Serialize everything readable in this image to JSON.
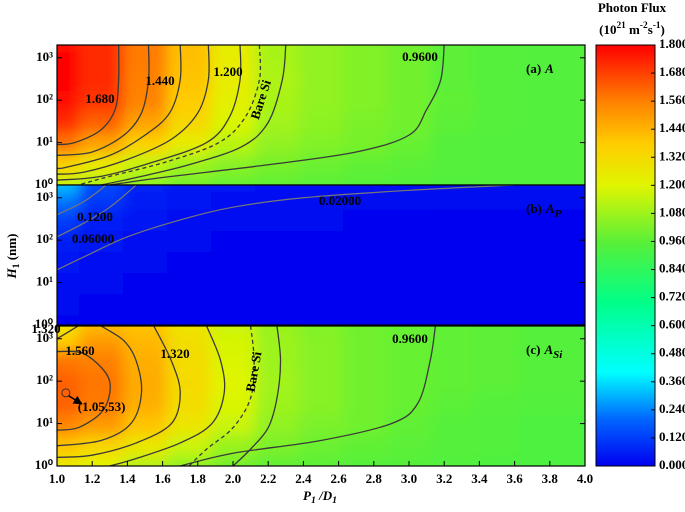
{
  "chart_data": {
    "type": "contour",
    "xlim": [
      1,
      4
    ],
    "xticks": [
      {
        "value": 1,
        "label": "1.0"
      },
      {
        "value": 1.2,
        "label": "1.2"
      },
      {
        "value": 1.4,
        "label": "1.4"
      },
      {
        "value": 1.6,
        "label": "1.6"
      },
      {
        "value": 1.8,
        "label": "1.8"
      },
      {
        "value": 2,
        "label": "2.0"
      },
      {
        "value": 2.2,
        "label": "2.2"
      },
      {
        "value": 2.4,
        "label": "2.4"
      },
      {
        "value": 2.6,
        "label": "2.6"
      },
      {
        "value": 2.8,
        "label": "2.8"
      },
      {
        "value": 3,
        "label": "3.0"
      },
      {
        "value": 3.2,
        "label": "3.2"
      },
      {
        "value": 3.4,
        "label": "3.4"
      },
      {
        "value": 3.6,
        "label": "3.6"
      },
      {
        "value": 3.8,
        "label": "3.8"
      },
      {
        "value": 4,
        "label": "4.0"
      }
    ],
    "xlabel": [
      {
        "text": "P",
        "sub": "1"
      },
      {
        "text": " /D",
        "sub": "1"
      }
    ],
    "ylabel": [
      {
        "text": "H",
        "sub": "1"
      },
      {
        "text": " (nm)"
      }
    ],
    "ylim": [
      1,
      2000
    ],
    "yscale": "log",
    "yticks": [
      {
        "value": 1,
        "label": "10⁰"
      },
      {
        "value": 10,
        "label": "10¹"
      },
      {
        "value": 100,
        "label": "10²"
      },
      {
        "value": 1000,
        "label": "10³"
      }
    ],
    "colorbar": {
      "title": "Photon Flux",
      "unit": [
        {
          "text": "(10",
          "sup": "21"
        },
        {
          "text": " m",
          "sup": "-2"
        },
        {
          "text": "s",
          "sup": "-1"
        },
        {
          "text": ")"
        }
      ],
      "lim": [
        0,
        1.8
      ],
      "ticks": [
        {
          "value": 0,
          "label": "0.000"
        },
        {
          "value": 0.12,
          "label": "0.1200"
        },
        {
          "value": 0.24,
          "label": "0.2400"
        },
        {
          "value": 0.36,
          "label": "0.3600"
        },
        {
          "value": 0.48,
          "label": "0.4800"
        },
        {
          "value": 0.6,
          "label": "0.6000"
        },
        {
          "value": 0.72,
          "label": "0.7200"
        },
        {
          "value": 0.84,
          "label": "0.8400"
        },
        {
          "value": 0.96,
          "label": "0.9600"
        },
        {
          "value": 1.08,
          "label": "1.080"
        },
        {
          "value": 1.2,
          "label": "1.200"
        },
        {
          "value": 1.32,
          "label": "1.320"
        },
        {
          "value": 1.44,
          "label": "1.440"
        },
        {
          "value": 1.56,
          "label": "1.560"
        },
        {
          "value": 1.68,
          "label": "1.680"
        },
        {
          "value": 1.8,
          "label": "1.800"
        }
      ],
      "colormap": [
        [
          0,
          "#0000f0"
        ],
        [
          0.2,
          "#0066ff"
        ],
        [
          0.4,
          "#00ffff"
        ],
        [
          0.7,
          "#00ff88"
        ],
        [
          0.95,
          "#55f03a"
        ],
        [
          1.2,
          "#e0f500"
        ],
        [
          1.38,
          "#ffcc00"
        ],
        [
          1.56,
          "#ff8000"
        ],
        [
          1.8,
          "#ff0000"
        ]
      ]
    },
    "panels": [
      {
        "tag": "(a)",
        "symbol": "A",
        "x": [
          1,
          1.25,
          1.5,
          1.75,
          2,
          2.25,
          2.5,
          2.75,
          3,
          3.25,
          3.5,
          3.75,
          4
        ],
        "y": [
          1,
          3,
          10,
          30,
          100,
          300,
          1000,
          2000
        ],
        "z": [
          [
            1.15,
            1.1,
            1.04,
            1.0,
            0.98,
            0.97,
            0.96,
            0.95,
            0.95,
            0.94,
            0.94,
            0.94,
            0.94
          ],
          [
            1.35,
            1.25,
            1.15,
            1.08,
            1.04,
            1.01,
            0.99,
            0.97,
            0.96,
            0.95,
            0.94,
            0.94,
            0.94
          ],
          [
            1.58,
            1.48,
            1.36,
            1.24,
            1.13,
            1.06,
            1.03,
            1.01,
            0.98,
            0.95,
            0.94,
            0.94,
            0.94
          ],
          [
            1.72,
            1.62,
            1.48,
            1.33,
            1.19,
            1.09,
            1.05,
            1.02,
            1.0,
            0.96,
            0.95,
            0.94,
            0.94
          ],
          [
            1.78,
            1.7,
            1.55,
            1.38,
            1.22,
            1.1,
            1.06,
            1.03,
            1.0,
            0.97,
            0.95,
            0.94,
            0.94
          ],
          [
            1.8,
            1.72,
            1.56,
            1.4,
            1.24,
            1.11,
            1.06,
            1.03,
            1.0,
            0.96,
            0.95,
            0.94,
            0.94
          ],
          [
            1.79,
            1.72,
            1.57,
            1.41,
            1.24,
            1.1,
            1.06,
            1.03,
            1.0,
            0.96,
            0.95,
            0.94,
            0.94
          ],
          [
            1.78,
            1.72,
            1.57,
            1.41,
            1.23,
            1.1,
            1.06,
            1.03,
            1.0,
            0.96,
            0.95,
            0.94,
            0.94
          ]
        ],
        "contours": [
          {
            "level": 1.68,
            "level_label": "1.680",
            "x": [
              1.35,
              1.35,
              1.33,
              1.25,
              1.1,
              1.0
            ],
            "y": [
              2000,
              300,
              60,
              20,
              10,
              9
            ]
          },
          {
            "level": 1.56,
            "x": [
              1.52,
              1.52,
              1.48,
              1.38,
              1.2,
              1.0
            ],
            "y": [
              2000,
              300,
              50,
              15,
              6,
              5
            ]
          },
          {
            "level": 1.44,
            "level_label": "1.440",
            "x": [
              1.7,
              1.7,
              1.64,
              1.5,
              1.3,
              1.05,
              1.0
            ],
            "y": [
              2000,
              300,
              50,
              15,
              5,
              2.6,
              2.5
            ]
          },
          {
            "level": 1.32,
            "x": [
              1.86,
              1.86,
              1.8,
              1.65,
              1.4,
              1.15,
              1.0
            ],
            "y": [
              2000,
              300,
              50,
              12,
              4,
              2,
              1.8
            ]
          },
          {
            "level": 1.2,
            "level_label": "1.200",
            "x": [
              2.04,
              2.04,
              1.98,
              1.85,
              1.55,
              1.25,
              1.0
            ],
            "y": [
              2000,
              300,
              40,
              10,
              3.5,
              1.6,
              1.3
            ]
          },
          {
            "style": "dashed",
            "x": [
              2.15,
              2.15,
              2.07,
              1.92,
              1.62,
              1.3,
              1.12
            ],
            "y": [
              2000,
              300,
              40,
              10,
              3.5,
              1.6,
              1
            ]
          },
          {
            "level": 1.08,
            "x": [
              2.3,
              2.28,
              2.2,
              2.05,
              1.75,
              1.45,
              1.25
            ],
            "y": [
              2000,
              300,
              30,
              8,
              3,
              1.5,
              1
            ]
          },
          {
            "level": 0.96,
            "level_label": "0.9600",
            "x": [
              3.2,
              3.18,
              3.1,
              3.0,
              2.7,
              2.2,
              1.6,
              1.3
            ],
            "y": [
              2000,
              300,
              60,
              15,
              6,
              3,
              1.5,
              1
            ]
          }
        ],
        "annotations": [
          {
            "text": "Bare Si"
          }
        ]
      },
      {
        "tag": "(b)",
        "symbol": "A",
        "sub": "P",
        "x": [
          1,
          1.25,
          1.5,
          1.75,
          2,
          2.25,
          2.5,
          2.75,
          3,
          3.25,
          3.5,
          3.75,
          4
        ],
        "y": [
          1,
          3,
          10,
          30,
          100,
          300,
          1000,
          2000
        ],
        "z": [
          [
            0.012,
            0.01,
            0.008,
            0.007,
            0.006,
            0.006,
            0.006,
            0.005,
            0.005,
            0.005,
            0.005,
            0.005,
            0.005
          ],
          [
            0.014,
            0.011,
            0.009,
            0.008,
            0.007,
            0.006,
            0.006,
            0.006,
            0.005,
            0.005,
            0.005,
            0.005,
            0.005
          ],
          [
            0.02,
            0.014,
            0.01,
            0.008,
            0.007,
            0.007,
            0.006,
            0.006,
            0.006,
            0.006,
            0.005,
            0.005,
            0.005
          ],
          [
            0.035,
            0.02,
            0.013,
            0.01,
            0.009,
            0.008,
            0.008,
            0.007,
            0.007,
            0.007,
            0.007,
            0.007,
            0.007
          ],
          [
            0.06,
            0.035,
            0.02,
            0.015,
            0.012,
            0.011,
            0.01,
            0.01,
            0.009,
            0.009,
            0.009,
            0.009,
            0.009
          ],
          [
            0.12,
            0.06,
            0.035,
            0.022,
            0.018,
            0.015,
            0.013,
            0.012,
            0.012,
            0.011,
            0.011,
            0.011,
            0.011
          ],
          [
            0.22,
            0.11,
            0.055,
            0.035,
            0.028,
            0.024,
            0.021,
            0.018,
            0.017,
            0.016,
            0.015,
            0.015,
            0.015
          ],
          [
            0.32,
            0.15,
            0.07,
            0.045,
            0.035,
            0.03,
            0.027,
            0.025,
            0.023,
            0.022,
            0.021,
            0.02,
            0.02
          ]
        ],
        "contours": [
          {
            "level": 0.12,
            "level_label": "0.1200",
            "x": [
              1.28,
              1.15,
              1.0
            ],
            "y": [
              2000,
              800,
              400
            ]
          },
          {
            "level": 0.06,
            "level_label": "0.06000",
            "x": [
              1.45,
              1.3,
              1.15,
              1.0
            ],
            "y": [
              2000,
              600,
              250,
              120
            ]
          },
          {
            "level": 0.02,
            "level_label": "0.02000",
            "x": [
              3.6,
              3.0,
              2.4,
              2.0,
              1.7,
              1.4,
              1.2,
              1.0
            ],
            "y": [
              2000,
              1500,
              1000,
              600,
              300,
              120,
              50,
              20
            ]
          }
        ]
      },
      {
        "tag": "(c)",
        "symbol": "A",
        "sub": "Si",
        "x": [
          1,
          1.25,
          1.5,
          1.75,
          2,
          2.25,
          2.5,
          2.75,
          3,
          3.25,
          3.5,
          3.75,
          4
        ],
        "y": [
          1,
          3,
          10,
          30,
          100,
          300,
          1000,
          2000
        ],
        "z": [
          [
            1.25,
            1.2,
            1.12,
            1.05,
            1.0,
            0.97,
            0.96,
            0.95,
            0.95,
            0.94,
            0.93,
            0.93,
            0.93
          ],
          [
            1.4,
            1.34,
            1.26,
            1.16,
            1.07,
            1.02,
            0.99,
            0.97,
            0.96,
            0.95,
            0.94,
            0.93,
            0.93
          ],
          [
            1.55,
            1.5,
            1.4,
            1.27,
            1.16,
            1.06,
            1.02,
            1.0,
            0.97,
            0.95,
            0.94,
            0.93,
            0.93
          ],
          [
            1.62,
            1.57,
            1.45,
            1.31,
            1.19,
            1.08,
            1.04,
            1.0,
            0.98,
            0.96,
            0.95,
            0.94,
            0.94
          ],
          [
            1.62,
            1.58,
            1.46,
            1.32,
            1.2,
            1.09,
            1.04,
            1.0,
            0.98,
            0.97,
            0.96,
            0.95,
            0.95
          ],
          [
            1.58,
            1.56,
            1.45,
            1.31,
            1.19,
            1.08,
            1.04,
            1.0,
            0.98,
            0.97,
            0.96,
            0.95,
            0.95
          ],
          [
            1.38,
            1.5,
            1.43,
            1.3,
            1.18,
            1.08,
            1.04,
            1.0,
            0.98,
            0.97,
            0.96,
            0.95,
            0.95
          ],
          [
            1.28,
            1.42,
            1.4,
            1.28,
            1.16,
            1.07,
            1.03,
            1.0,
            0.98,
            0.97,
            0.96,
            0.95,
            0.95
          ]
        ],
        "contours": [
          {
            "level": 1.32,
            "level_label": "1.320",
            "x": [
              1.12,
              1.0
            ],
            "y": [
              2000,
              1000
            ]
          },
          {
            "level": 1.56,
            "level_label": "1.560",
            "x": [
              1.0,
              1.15,
              1.28,
              1.3,
              1.25,
              1.12,
              1.0
            ],
            "y": [
              500,
              450,
              150,
              53,
              18,
              8,
              7
            ]
          },
          {
            "level": 1.44,
            "x": [
              1.25,
              1.38,
              1.45,
              1.48,
              1.42,
              1.25,
              1.0
            ],
            "y": [
              2000,
              900,
              300,
              53,
              10,
              4,
              3
            ]
          },
          {
            "level": 1.32,
            "level_label": "1.320",
            "x": [
              1.55,
              1.65,
              1.7,
              1.65,
              1.45,
              1.2,
              1.0
            ],
            "y": [
              2000,
              300,
              53,
              10,
              3.5,
              1.8,
              1.6
            ]
          },
          {
            "level": 1.2,
            "x": [
              1.85,
              1.93,
              1.95,
              1.88,
              1.7,
              1.45,
              1.3
            ],
            "y": [
              2000,
              300,
              53,
              10,
              3.5,
              1.5,
              1
            ]
          },
          {
            "style": "dashed",
            "x": [
              2.1,
              2.12,
              2.1,
              2.0,
              1.85,
              1.75
            ],
            "y": [
              2000,
              300,
              40,
              8,
              2.5,
              1
            ]
          },
          {
            "level": 1.08,
            "x": [
              2.25,
              2.27,
              2.25,
              2.2,
              2.1,
              2.0
            ],
            "y": [
              2000,
              300,
              40,
              8,
              2.5,
              1
            ]
          },
          {
            "level": 0.96,
            "level_label": "0.9600",
            "x": [
              3.15,
              3.12,
              3.05,
              2.9,
              2.5,
              2.0,
              1.7
            ],
            "y": [
              2000,
              300,
              30,
              10,
              4,
              2,
              1
            ]
          }
        ],
        "annotations": [
          {
            "text": "Bare Si"
          },
          {
            "text": "(1.05,53)",
            "x": 1.05,
            "y": 53
          }
        ]
      }
    ]
  }
}
